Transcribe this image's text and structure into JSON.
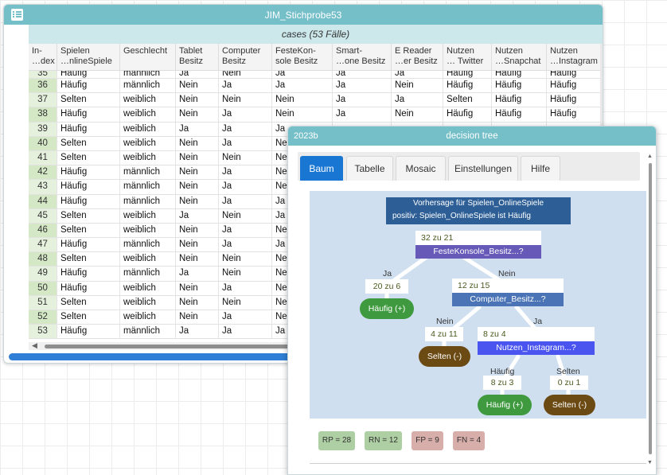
{
  "table_window": {
    "title": "JIM_Stichprobe53",
    "icon": "table-icon",
    "subtitle": "cases (53 Fälle)",
    "columns": [
      {
        "l1": "In-",
        "l2": "…dex"
      },
      {
        "l1": "Spielen",
        "l2": "…nlineSpiele"
      },
      {
        "l1": "Geschlecht",
        "l2": ""
      },
      {
        "l1": "Tablet",
        "l2": "Besitz"
      },
      {
        "l1": "Computer",
        "l2": "Besitz"
      },
      {
        "l1": "FesteKon-",
        "l2": "sole Besitz"
      },
      {
        "l1": "Smart-",
        "l2": "…one Besitz"
      },
      {
        "l1": "E Reader",
        "l2": "…er Besitz"
      },
      {
        "l1": "Nutzen",
        "l2": "… Twitter"
      },
      {
        "l1": "Nutzen",
        "l2": "…Snapchat"
      },
      {
        "l1": "Nutzen",
        "l2": "…Instagram"
      }
    ],
    "rows": [
      [
        "35",
        "Häufig",
        "männlich",
        "Ja",
        "Nein",
        "Ja",
        "Ja",
        "Ja",
        "Häufig",
        "Häufig",
        "Häufig"
      ],
      [
        "36",
        "Häufig",
        "männlich",
        "Nein",
        "Ja",
        "Ja",
        "Ja",
        "Nein",
        "Häufig",
        "Häufig",
        "Häufig"
      ],
      [
        "37",
        "Selten",
        "weiblich",
        "Nein",
        "Nein",
        "Nein",
        "Ja",
        "Ja",
        "Selten",
        "Häufig",
        "Häufig"
      ],
      [
        "38",
        "Häufig",
        "weiblich",
        "Nein",
        "Ja",
        "Nein",
        "Ja",
        "Nein",
        "Häufig",
        "Häufig",
        "Häufig"
      ],
      [
        "39",
        "Häufig",
        "weiblich",
        "Ja",
        "Ja",
        "Ja",
        "",
        "",
        "",
        "",
        ""
      ],
      [
        "40",
        "Selten",
        "weiblich",
        "Nein",
        "Ja",
        "Ne",
        "",
        "",
        "",
        "",
        ""
      ],
      [
        "41",
        "Selten",
        "weiblich",
        "Nein",
        "Nein",
        "Ne",
        "",
        "",
        "",
        "",
        ""
      ],
      [
        "42",
        "Häufig",
        "männlich",
        "Nein",
        "Ja",
        "Ne",
        "",
        "",
        "",
        "",
        ""
      ],
      [
        "43",
        "Häufig",
        "männlich",
        "Nein",
        "Ja",
        "Ne",
        "",
        "",
        "",
        "",
        ""
      ],
      [
        "44",
        "Häufig",
        "männlich",
        "Nein",
        "Ja",
        "Ja",
        "",
        "",
        "",
        "",
        ""
      ],
      [
        "45",
        "Selten",
        "weiblich",
        "Ja",
        "Nein",
        "Ja",
        "",
        "",
        "",
        "",
        ""
      ],
      [
        "46",
        "Selten",
        "weiblich",
        "Nein",
        "Ja",
        "Ne",
        "",
        "",
        "",
        "",
        ""
      ],
      [
        "47",
        "Häufig",
        "männlich",
        "Nein",
        "Ja",
        "Ja",
        "",
        "",
        "",
        "",
        ""
      ],
      [
        "48",
        "Selten",
        "weiblich",
        "Nein",
        "Nein",
        "Ne",
        "",
        "",
        "",
        "",
        ""
      ],
      [
        "49",
        "Häufig",
        "männlich",
        "Ja",
        "Nein",
        "Ne",
        "",
        "",
        "",
        "",
        ""
      ],
      [
        "50",
        "Häufig",
        "weiblich",
        "Nein",
        "Ja",
        "Ne",
        "",
        "",
        "",
        "",
        ""
      ],
      [
        "51",
        "Selten",
        "weiblich",
        "Nein",
        "Nein",
        "Ne",
        "",
        "",
        "",
        "",
        ""
      ],
      [
        "52",
        "Selten",
        "weiblich",
        "Nein",
        "Ja",
        "Ne",
        "",
        "",
        "",
        "",
        ""
      ],
      [
        "53",
        "Häufig",
        "männlich",
        "Ja",
        "Ja",
        "Ja",
        "",
        "",
        "",
        "",
        ""
      ]
    ]
  },
  "tree_window": {
    "tag": "2023b",
    "title": "decision tree",
    "tabs": [
      {
        "label": "Baum",
        "active": true
      },
      {
        "label": "Tabelle",
        "active": false
      },
      {
        "label": "Mosaic",
        "active": false
      },
      {
        "label": "Einstellungen",
        "active": false
      },
      {
        "label": "Hilfe",
        "active": false
      }
    ],
    "header_line1": "Vorhersage für Spielen_OnlineSpiele",
    "header_line2": "positiv: Spielen_OnlineSpiele ist Häufig",
    "root": {
      "count": "32 zu 21",
      "question": "FesteKonsole_Besitz...?"
    },
    "branch_root_left": "Ja",
    "branch_root_right": "Nein",
    "left_leaf": {
      "count": "20 zu 6",
      "label": "Häufig (+)"
    },
    "computer_node": {
      "count": "12 zu 15",
      "question": "Computer_Besitz...?"
    },
    "branch_comp_left": "Nein",
    "branch_comp_right": "Ja",
    "comp_left_leaf": {
      "count": "4 zu 11",
      "label": "Selten (-)"
    },
    "instagram_node": {
      "count": "8 zu 4",
      "question": "Nutzen_Instagram...?"
    },
    "branch_insta_left": "Häufig",
    "branch_insta_right": "Selten",
    "insta_left_leaf": {
      "count": "8 zu 3",
      "label": "Häufig (+)"
    },
    "insta_right_leaf": {
      "count": "0 zu 1",
      "label": "Selten (-)"
    },
    "metrics": [
      {
        "label": "RP = 28",
        "tone": "green"
      },
      {
        "label": "RN = 12",
        "tone": "green"
      },
      {
        "label": "FP = 9",
        "tone": "red"
      },
      {
        "label": "FN = 4",
        "tone": "red"
      }
    ],
    "colors": {
      "header": "#2d5f96",
      "root_question": "#6759b8",
      "computer_question": "#4a74b5",
      "instagram_question": "#4a55f0",
      "positive_leaf": "#3f9a3f",
      "negative_leaf": "#6b4a14"
    }
  }
}
